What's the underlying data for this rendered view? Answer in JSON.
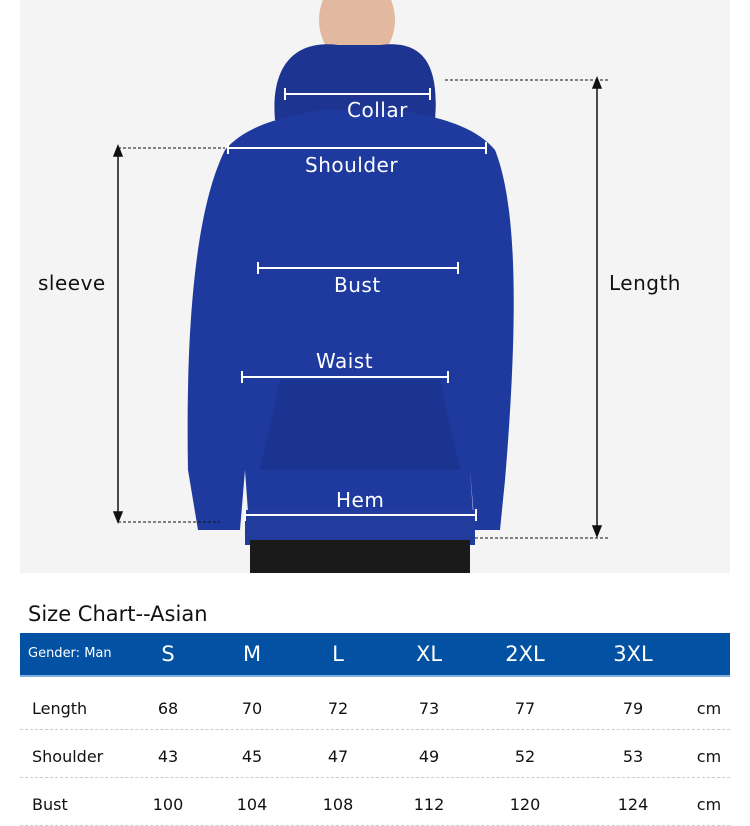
{
  "diagram": {
    "labels": {
      "collar": "Collar",
      "shoulder": "Shoulder",
      "bust": "Bust",
      "waist": "Waist",
      "hem": "Hem",
      "sleeve": "sleeve",
      "length": "Length"
    },
    "garment_color": "#1f3a9e"
  },
  "size_chart": {
    "title": "Size Chart--Asian",
    "gender_label": "Gender: Man",
    "sizes": [
      "S",
      "M",
      "L",
      "XL",
      "2XL",
      "3XL"
    ],
    "header_color": "#0251a3",
    "rows": [
      {
        "name": "Length",
        "values": [
          "68",
          "70",
          "72",
          "73",
          "77",
          "79"
        ],
        "unit": "cm"
      },
      {
        "name": "Shoulder",
        "values": [
          "43",
          "45",
          "47",
          "49",
          "52",
          "53"
        ],
        "unit": "cm"
      },
      {
        "name": "Bust",
        "values": [
          "100",
          "104",
          "108",
          "112",
          "120",
          "124"
        ],
        "unit": "cm"
      }
    ]
  }
}
